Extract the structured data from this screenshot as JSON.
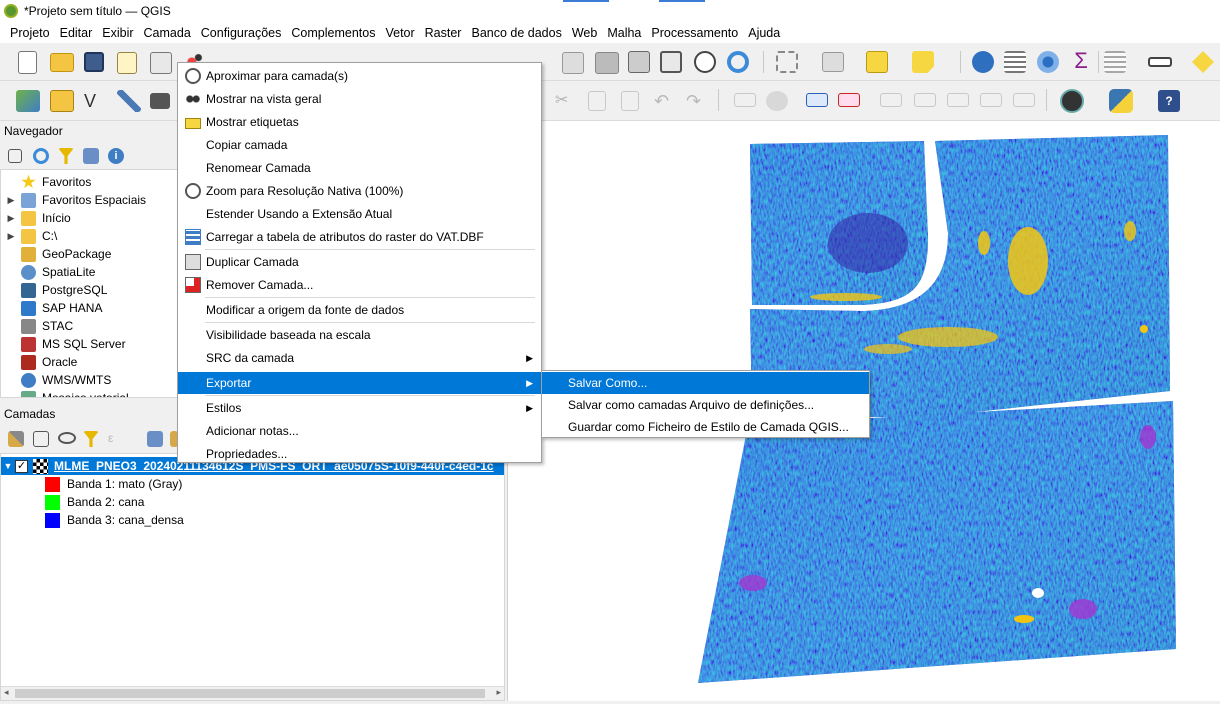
{
  "window": {
    "title": "*Projeto sem título — QGIS"
  },
  "menubar": [
    "Projeto",
    "Editar",
    "Exibir",
    "Camada",
    "Configurações",
    "Complementos",
    "Vetor",
    "Raster",
    "Banco de dados",
    "Web",
    "Malha",
    "Processamento",
    "Ajuda"
  ],
  "navigator": {
    "title": "Navegador",
    "items": [
      {
        "label": "Favoritos",
        "icon": "star-icon",
        "expandable": false
      },
      {
        "label": "Favoritos Espaciais",
        "icon": "spatial-bookmark-icon",
        "expandable": true
      },
      {
        "label": "Início",
        "icon": "home-folder-icon",
        "expandable": true
      },
      {
        "label": "C:\\",
        "icon": "drive-icon",
        "expandable": true
      },
      {
        "label": "GeoPackage",
        "icon": "geopackage-icon",
        "expandable": false
      },
      {
        "label": "SpatiaLite",
        "icon": "spatialite-icon",
        "expandable": false
      },
      {
        "label": "PostgreSQL",
        "icon": "postgresql-icon",
        "expandable": false
      },
      {
        "label": "SAP HANA",
        "icon": "sap-hana-icon",
        "expandable": false
      },
      {
        "label": "STAC",
        "icon": "stac-icon",
        "expandable": false
      },
      {
        "label": "MS SQL Server",
        "icon": "mssql-icon",
        "expandable": false
      },
      {
        "label": "Oracle",
        "icon": "oracle-icon",
        "expandable": false
      },
      {
        "label": "WMS/WMTS",
        "icon": "wms-icon",
        "expandable": false
      },
      {
        "label": "Mosaico vetorial",
        "icon": "vector-tile-icon",
        "expandable": false
      }
    ]
  },
  "layers": {
    "title": "Camadas",
    "layer_name": "MLME_PNEO3_20240211134612S_PMS-FS_ORT_ae05075S-10f9-440f-c4ed-1c",
    "checked": true,
    "bands": [
      {
        "label": "Banda 1: mato (Gray)",
        "color": "#ff0000"
      },
      {
        "label": "Banda 2: cana",
        "color": "#00ff00"
      },
      {
        "label": "Banda 3: cana_densa",
        "color": "#0000ff"
      }
    ]
  },
  "context_menu": {
    "items": [
      {
        "label": "Aproximar para camada(s)",
        "icon": "zoom-to-layer-icon"
      },
      {
        "label": "Mostrar na vista geral",
        "icon": "overview-icon"
      },
      {
        "label": "Mostrar etiquetas",
        "icon": "labels-icon"
      },
      {
        "label": "Copiar camada",
        "icon": ""
      },
      {
        "label": "Renomear Camada",
        "icon": ""
      },
      {
        "label": "Zoom para Resolução Nativa (100%)",
        "icon": "zoom-native-icon"
      },
      {
        "label": "Estender Usando a Extensão Atual",
        "icon": ""
      },
      {
        "label": "Carregar a tabela de atributos do raster do VAT.DBF",
        "icon": "attribute-table-icon"
      },
      {
        "label": "Duplicar Camada",
        "icon": "duplicate-layer-icon"
      },
      {
        "label": "Remover Camada...",
        "icon": "remove-layer-icon"
      },
      {
        "label": "Modificar a origem da fonte de dados",
        "icon": ""
      },
      {
        "label": "Visibilidade baseada na escala",
        "icon": ""
      },
      {
        "label": "SRC da camada",
        "icon": "",
        "submenu": true
      },
      {
        "label": "Exportar",
        "icon": "",
        "submenu": true,
        "active": true
      },
      {
        "label": "Estilos",
        "icon": "",
        "submenu": true
      },
      {
        "label": "Adicionar notas...",
        "icon": ""
      },
      {
        "label": "Propriedades...",
        "icon": ""
      }
    ]
  },
  "export_submenu": {
    "items": [
      {
        "label": "Salvar Como...",
        "active": true
      },
      {
        "label": "Salvar como camadas Arquivo de definições...",
        "active": false
      },
      {
        "label": "Guardar como Ficheiro de Estilo de Camada QGIS...",
        "active": false
      }
    ]
  },
  "colors": {
    "accent": "#0078d7",
    "menu_bg": "#ffffff",
    "layer_selected": "#0078d7"
  }
}
